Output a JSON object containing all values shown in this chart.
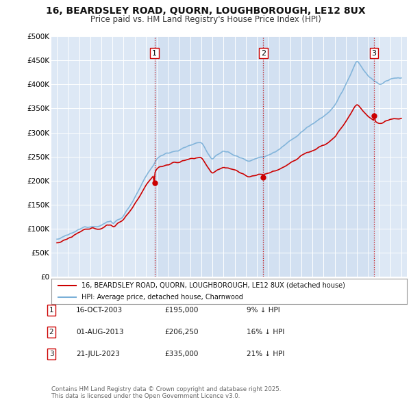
{
  "title": "16, BEARDSLEY ROAD, QUORN, LOUGHBOROUGH, LE12 8UX",
  "subtitle": "Price paid vs. HM Land Registry's House Price Index (HPI)",
  "background_color": "#ffffff",
  "plot_bg_color": "#dde8f5",
  "grid_color": "#ffffff",
  "sale_dates": [
    2003.79,
    2013.58,
    2023.55
  ],
  "sale_prices": [
    195000,
    206250,
    335000
  ],
  "sale_labels": [
    "1",
    "2",
    "3"
  ],
  "sale_line_color": "#cc0000",
  "hpi_line_color": "#7ab0d8",
  "vline_color": "#cc0000",
  "shade_color": "#c5d8ef",
  "legend_sale": "16, BEARDSLEY ROAD, QUORN, LOUGHBOROUGH, LE12 8UX (detached house)",
  "legend_hpi": "HPI: Average price, detached house, Charnwood",
  "footer": "Contains HM Land Registry data © Crown copyright and database right 2025.\nThis data is licensed under the Open Government Licence v3.0.",
  "table_rows": [
    {
      "num": "1",
      "date": "16-OCT-2003",
      "price": "£195,000",
      "pct": "9% ↓ HPI"
    },
    {
      "num": "2",
      "date": "01-AUG-2013",
      "price": "£206,250",
      "pct": "16% ↓ HPI"
    },
    {
      "num": "3",
      "date": "21-JUL-2023",
      "price": "£335,000",
      "pct": "21% ↓ HPI"
    }
  ],
  "ylim": [
    0,
    500000
  ],
  "xlim": [
    1994.5,
    2026.5
  ],
  "yticks": [
    0,
    50000,
    100000,
    150000,
    200000,
    250000,
    300000,
    350000,
    400000,
    450000,
    500000
  ],
  "ytick_labels": [
    "£0",
    "£50K",
    "£100K",
    "£150K",
    "£200K",
    "£250K",
    "£300K",
    "£350K",
    "£400K",
    "£450K",
    "£500K"
  ],
  "xticks": [
    1995,
    1996,
    1997,
    1998,
    1999,
    2000,
    2001,
    2002,
    2003,
    2004,
    2005,
    2006,
    2007,
    2008,
    2009,
    2010,
    2011,
    2012,
    2013,
    2014,
    2015,
    2016,
    2017,
    2018,
    2019,
    2020,
    2021,
    2022,
    2023,
    2024,
    2025,
    2026
  ]
}
